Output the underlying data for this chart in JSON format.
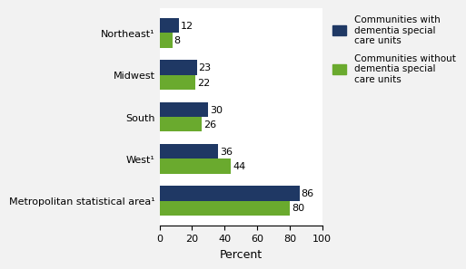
{
  "categories": [
    "Metropolitan statistical area¹",
    "West¹",
    "South",
    "Midwest",
    "Northeast¹"
  ],
  "with_units": [
    86,
    36,
    30,
    23,
    12
  ],
  "without_units": [
    80,
    44,
    26,
    22,
    8
  ],
  "color_with": "#1f3864",
  "color_without": "#6aaa2e",
  "xlabel": "Percent",
  "xlim": [
    0,
    100
  ],
  "xticks": [
    0,
    20,
    40,
    60,
    80,
    100
  ],
  "legend_with": "Communities with\ndementia special\ncare units",
  "legend_without": "Communities without\ndementia special\ncare units",
  "bar_height": 0.35,
  "figure_bg": "#f2f2f2",
  "axes_bg": "#ffffff"
}
